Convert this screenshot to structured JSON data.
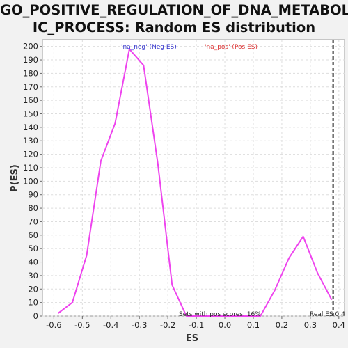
{
  "chart_data": {
    "type": "line",
    "title_lines": [
      "GO_POSITIVE_REGULATION_OF_DNA_METABOL",
      "IC_PROCESS: Random ES distribution"
    ],
    "xlabel": "ES",
    "ylabel": "P(ES)",
    "xlim": [
      -0.64,
      0.42
    ],
    "ylim": [
      0,
      205
    ],
    "xticks": [
      -0.6,
      -0.5,
      -0.4,
      -0.3,
      -0.2,
      -0.1,
      0.0,
      0.1,
      0.2,
      0.3,
      0.4
    ],
    "xtick_labels": [
      "-0.6",
      "-0.5",
      "-0.4",
      "-0.3",
      "-0.2",
      "-0.1",
      "0.0",
      "0.1",
      "0.2",
      "0.3",
      "0.4"
    ],
    "yticks": [
      0,
      10,
      20,
      30,
      40,
      50,
      60,
      70,
      80,
      90,
      100,
      110,
      120,
      130,
      140,
      150,
      160,
      170,
      180,
      190,
      200
    ],
    "ytick_labels": [
      "0",
      "10",
      "20",
      "30",
      "40",
      "50",
      "60",
      "70",
      "80",
      "90",
      "100",
      "110",
      "120",
      "130",
      "140",
      "150",
      "160",
      "170",
      "180",
      "190",
      "200"
    ],
    "grid": true,
    "series": [
      {
        "color": "#ee44ee",
        "x": [
          -0.585,
          -0.535,
          -0.485,
          -0.435,
          -0.385,
          -0.335,
          -0.285,
          -0.235,
          -0.185,
          -0.135,
          -0.085,
          -0.035,
          0.015,
          0.065,
          0.125,
          0.175,
          0.225,
          0.275,
          0.325,
          0.375
        ],
        "y": [
          2,
          10,
          45,
          115,
          143,
          198,
          186,
          113,
          23,
          0,
          0,
          0,
          0,
          0,
          0,
          19,
          43,
          59,
          32,
          12
        ]
      }
    ],
    "legend": [
      {
        "label": "'na_neg' (Neg ES)",
        "color": "#3333cc"
      },
      {
        "label": "'na_pos' (Pos ES)",
        "color": "#dd3333"
      }
    ],
    "real_es": {
      "value": 0.38,
      "label": "Real ES 0.4"
    },
    "annotation": "Sets with pos scores: 16%"
  },
  "colors": {
    "line": "#ee44ee",
    "grid": "#dddddd",
    "plot_bg": "#ffffff",
    "page_bg": "#f2f2f2",
    "real_es_line": "#222222"
  }
}
